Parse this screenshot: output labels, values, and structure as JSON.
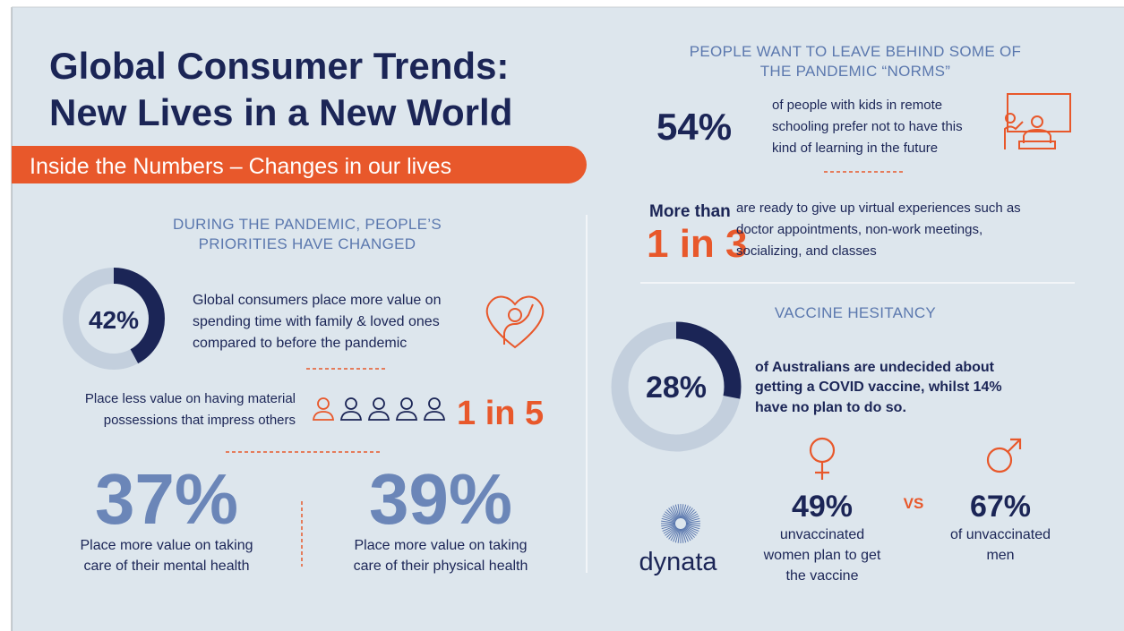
{
  "title": [
    "Global Consumer Trends:",
    "New Lives in a New World"
  ],
  "banner": "Inside the Numbers – Changes in our lives",
  "left": {
    "heading": [
      "DURING THE PANDEMIC, PEOPLE’S",
      "PRIORITIES HAVE CHANGED"
    ],
    "family": {
      "stat": {
        "value": 42,
        "label": "42%"
      },
      "text": [
        "Global consumers place more value on",
        "spending time with family & loved ones",
        "compared to before the pandemic"
      ]
    },
    "possessions": {
      "text": [
        "Place less value on having material",
        "possessions that impress others"
      ],
      "stat": "1 in 5"
    },
    "mental": {
      "stat": "37%",
      "text": [
        "Place more value on taking",
        "care of their mental health"
      ]
    },
    "physical": {
      "stat": "39%",
      "text": [
        "Place more value on taking",
        "care of their physical health"
      ]
    }
  },
  "right": {
    "heading": [
      "PEOPLE WANT TO LEAVE BEHIND SOME OF",
      "THE PANDEMIC “NORMS”"
    ],
    "schooling": {
      "stat": "54%",
      "text": [
        "of people with kids in remote",
        "schooling prefer not to have this",
        "kind of learning in the future"
      ]
    },
    "virtual": {
      "prefix": "More than",
      "stat": "1 in 3",
      "text": [
        "are ready to give up virtual experiences such as",
        "doctor appointments, non-work meetings,",
        "socializing, and classes"
      ]
    },
    "vaccine": {
      "heading": "VACCINE HESITANCY",
      "stat": {
        "value": 28,
        "label": "28%"
      },
      "text": [
        "of Australians are undecided about",
        "getting a COVID vaccine, whilst 14%",
        "have no plan to do so."
      ],
      "women": {
        "stat": "49%",
        "text": [
          "unvaccinated",
          "women plan to get",
          "the vaccine"
        ]
      },
      "vs": "VS",
      "men": {
        "stat": "67%",
        "text": [
          "of unvaccinated",
          "men"
        ]
      }
    }
  },
  "logo": "dynata"
}
